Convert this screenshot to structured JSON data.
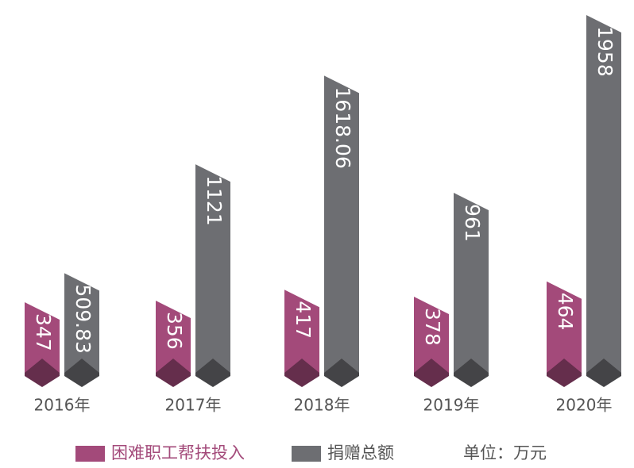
{
  "chart_data": {
    "type": "bar",
    "categories": [
      "2016年",
      "2017年",
      "2018年",
      "2019年",
      "2020年"
    ],
    "series": [
      {
        "name": "困难职工帮扶投入",
        "color": "#a34a7a",
        "values": [
          347,
          356,
          417,
          378,
          464
        ]
      },
      {
        "name": "捐赠总额",
        "color": "#6d6e72",
        "values": [
          509.83,
          1121,
          1618.06,
          961,
          1958
        ]
      }
    ],
    "unit_label": "单位：万元"
  }
}
